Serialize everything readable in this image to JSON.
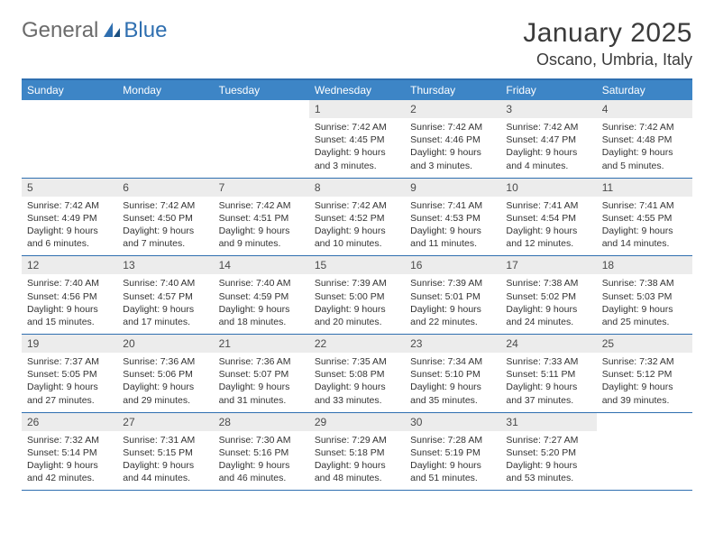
{
  "brand": {
    "part1": "General",
    "part2": "Blue"
  },
  "title": "January 2025",
  "location": "Oscano, Umbria, Italy",
  "colors": {
    "header_bg": "#3d85c6",
    "border": "#2f6fb0",
    "daynum_bg": "#ececec",
    "text": "#333333"
  },
  "day_names": [
    "Sunday",
    "Monday",
    "Tuesday",
    "Wednesday",
    "Thursday",
    "Friday",
    "Saturday"
  ],
  "weeks": [
    [
      null,
      null,
      null,
      {
        "n": "1",
        "sunrise": "7:42 AM",
        "sunset": "4:45 PM",
        "daylight": "9 hours and 3 minutes."
      },
      {
        "n": "2",
        "sunrise": "7:42 AM",
        "sunset": "4:46 PM",
        "daylight": "9 hours and 3 minutes."
      },
      {
        "n": "3",
        "sunrise": "7:42 AM",
        "sunset": "4:47 PM",
        "daylight": "9 hours and 4 minutes."
      },
      {
        "n": "4",
        "sunrise": "7:42 AM",
        "sunset": "4:48 PM",
        "daylight": "9 hours and 5 minutes."
      }
    ],
    [
      {
        "n": "5",
        "sunrise": "7:42 AM",
        "sunset": "4:49 PM",
        "daylight": "9 hours and 6 minutes."
      },
      {
        "n": "6",
        "sunrise": "7:42 AM",
        "sunset": "4:50 PM",
        "daylight": "9 hours and 7 minutes."
      },
      {
        "n": "7",
        "sunrise": "7:42 AM",
        "sunset": "4:51 PM",
        "daylight": "9 hours and 9 minutes."
      },
      {
        "n": "8",
        "sunrise": "7:42 AM",
        "sunset": "4:52 PM",
        "daylight": "9 hours and 10 minutes."
      },
      {
        "n": "9",
        "sunrise": "7:41 AM",
        "sunset": "4:53 PM",
        "daylight": "9 hours and 11 minutes."
      },
      {
        "n": "10",
        "sunrise": "7:41 AM",
        "sunset": "4:54 PM",
        "daylight": "9 hours and 12 minutes."
      },
      {
        "n": "11",
        "sunrise": "7:41 AM",
        "sunset": "4:55 PM",
        "daylight": "9 hours and 14 minutes."
      }
    ],
    [
      {
        "n": "12",
        "sunrise": "7:40 AM",
        "sunset": "4:56 PM",
        "daylight": "9 hours and 15 minutes."
      },
      {
        "n": "13",
        "sunrise": "7:40 AM",
        "sunset": "4:57 PM",
        "daylight": "9 hours and 17 minutes."
      },
      {
        "n": "14",
        "sunrise": "7:40 AM",
        "sunset": "4:59 PM",
        "daylight": "9 hours and 18 minutes."
      },
      {
        "n": "15",
        "sunrise": "7:39 AM",
        "sunset": "5:00 PM",
        "daylight": "9 hours and 20 minutes."
      },
      {
        "n": "16",
        "sunrise": "7:39 AM",
        "sunset": "5:01 PM",
        "daylight": "9 hours and 22 minutes."
      },
      {
        "n": "17",
        "sunrise": "7:38 AM",
        "sunset": "5:02 PM",
        "daylight": "9 hours and 24 minutes."
      },
      {
        "n": "18",
        "sunrise": "7:38 AM",
        "sunset": "5:03 PM",
        "daylight": "9 hours and 25 minutes."
      }
    ],
    [
      {
        "n": "19",
        "sunrise": "7:37 AM",
        "sunset": "5:05 PM",
        "daylight": "9 hours and 27 minutes."
      },
      {
        "n": "20",
        "sunrise": "7:36 AM",
        "sunset": "5:06 PM",
        "daylight": "9 hours and 29 minutes."
      },
      {
        "n": "21",
        "sunrise": "7:36 AM",
        "sunset": "5:07 PM",
        "daylight": "9 hours and 31 minutes."
      },
      {
        "n": "22",
        "sunrise": "7:35 AM",
        "sunset": "5:08 PM",
        "daylight": "9 hours and 33 minutes."
      },
      {
        "n": "23",
        "sunrise": "7:34 AM",
        "sunset": "5:10 PM",
        "daylight": "9 hours and 35 minutes."
      },
      {
        "n": "24",
        "sunrise": "7:33 AM",
        "sunset": "5:11 PM",
        "daylight": "9 hours and 37 minutes."
      },
      {
        "n": "25",
        "sunrise": "7:32 AM",
        "sunset": "5:12 PM",
        "daylight": "9 hours and 39 minutes."
      }
    ],
    [
      {
        "n": "26",
        "sunrise": "7:32 AM",
        "sunset": "5:14 PM",
        "daylight": "9 hours and 42 minutes."
      },
      {
        "n": "27",
        "sunrise": "7:31 AM",
        "sunset": "5:15 PM",
        "daylight": "9 hours and 44 minutes."
      },
      {
        "n": "28",
        "sunrise": "7:30 AM",
        "sunset": "5:16 PM",
        "daylight": "9 hours and 46 minutes."
      },
      {
        "n": "29",
        "sunrise": "7:29 AM",
        "sunset": "5:18 PM",
        "daylight": "9 hours and 48 minutes."
      },
      {
        "n": "30",
        "sunrise": "7:28 AM",
        "sunset": "5:19 PM",
        "daylight": "9 hours and 51 minutes."
      },
      {
        "n": "31",
        "sunrise": "7:27 AM",
        "sunset": "5:20 PM",
        "daylight": "9 hours and 53 minutes."
      },
      null
    ]
  ],
  "labels": {
    "sunrise": "Sunrise:",
    "sunset": "Sunset:",
    "daylight": "Daylight:"
  }
}
